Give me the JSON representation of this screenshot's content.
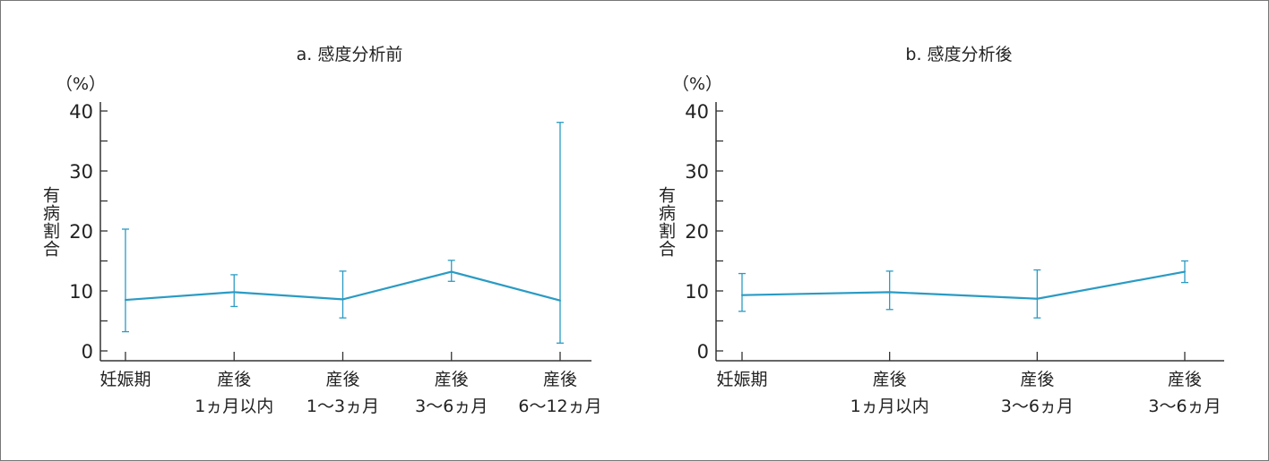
{
  "chart_data": [
    {
      "type": "line",
      "title": "a. 感度分析前",
      "unit_label": "（%）",
      "ylabel": "有病割合",
      "ylim": [
        0,
        40
      ],
      "yticks": [
        "0",
        "10",
        "20",
        "30",
        "40"
      ],
      "categories": [
        [
          "妊娠期",
          ""
        ],
        [
          "産後",
          "1ヵ月以内"
        ],
        [
          "産後",
          "1〜3ヵ月"
        ],
        [
          "産後",
          "3〜6ヵ月"
        ],
        [
          "産後",
          "6〜12ヵ月"
        ]
      ],
      "values": [
        8.5,
        9.8,
        8.6,
        13.2,
        8.4
      ],
      "error_low": [
        3.2,
        7.4,
        5.5,
        11.6,
        1.3
      ],
      "error_high": [
        20.3,
        12.7,
        13.3,
        15.1,
        38.1
      ],
      "color": "#2a9bc4"
    },
    {
      "type": "line",
      "title": "b. 感度分析後",
      "unit_label": "（%）",
      "ylabel": "有病割合",
      "ylim": [
        0,
        40
      ],
      "yticks": [
        "0",
        "10",
        "20",
        "30",
        "40"
      ],
      "categories": [
        [
          "妊娠期",
          ""
        ],
        [
          "産後",
          "1ヵ月以内"
        ],
        [
          "産後",
          "3〜6ヵ月"
        ],
        [
          "産後",
          "3〜6ヵ月"
        ]
      ],
      "values": [
        9.3,
        9.8,
        8.7,
        13.2
      ],
      "error_low": [
        6.6,
        6.9,
        5.5,
        11.4
      ],
      "error_high": [
        12.9,
        13.3,
        13.5,
        15.0
      ],
      "color": "#2a9bc4"
    }
  ]
}
